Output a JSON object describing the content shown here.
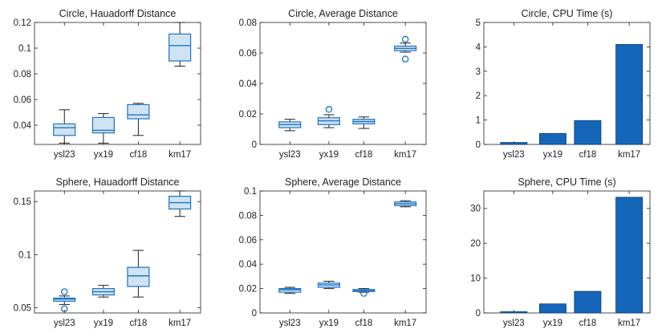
{
  "colors": {
    "box_fill": "#cfe3f3",
    "box_edge": "#1f74c2",
    "median": "#1f74c2",
    "whisker": "#222222",
    "outlier": "#1f74c2",
    "bar": "#1565b8",
    "axis": "#222222",
    "text": "#222222"
  },
  "chart_data": [
    {
      "type": "boxplot",
      "title": "Circle, Hauadorff Distance",
      "categories": [
        "ysl23",
        "yx19",
        "cf18",
        "km17"
      ],
      "ylim": [
        0.025,
        0.12
      ],
      "yticks": [
        0.04,
        0.06,
        0.08,
        0.1,
        0.12
      ],
      "ytick_labels": [
        "0.04",
        "0.06",
        "0.08",
        "0.1",
        "0.12"
      ],
      "boxes": [
        {
          "whislo": 0.026,
          "q1": 0.032,
          "med": 0.038,
          "q3": 0.041,
          "whishi": 0.052,
          "outliers": []
        },
        {
          "whislo": 0.026,
          "q1": 0.034,
          "med": 0.036,
          "q3": 0.046,
          "whishi": 0.049,
          "outliers": []
        },
        {
          "whislo": 0.032,
          "q1": 0.045,
          "med": 0.048,
          "q3": 0.056,
          "whishi": 0.057,
          "outliers": []
        },
        {
          "whislo": 0.086,
          "q1": 0.09,
          "med": 0.102,
          "q3": 0.111,
          "whishi": 0.12,
          "outliers": []
        }
      ]
    },
    {
      "type": "boxplot",
      "title": "Circle, Average Distance",
      "categories": [
        "ysl23",
        "yx19",
        "cf18",
        "km17"
      ],
      "ylim": [
        0,
        0.08
      ],
      "yticks": [
        0,
        0.02,
        0.04,
        0.06,
        0.08
      ],
      "ytick_labels": [
        "0",
        "0.02",
        "0.04",
        "0.06",
        "0.08"
      ],
      "boxes": [
        {
          "whislo": 0.009,
          "q1": 0.011,
          "med": 0.013,
          "q3": 0.0148,
          "whishi": 0.0165,
          "outliers": []
        },
        {
          "whislo": 0.011,
          "q1": 0.013,
          "med": 0.0155,
          "q3": 0.0175,
          "whishi": 0.0195,
          "outliers": [
            0.023
          ]
        },
        {
          "whislo": 0.0105,
          "q1": 0.0135,
          "med": 0.015,
          "q3": 0.0165,
          "whishi": 0.018,
          "outliers": []
        },
        {
          "whislo": 0.0605,
          "q1": 0.0615,
          "med": 0.063,
          "q3": 0.0645,
          "whishi": 0.0665,
          "outliers": [
            0.069,
            0.056
          ]
        }
      ]
    },
    {
      "type": "bar",
      "title": "Circle, CPU Time (s)",
      "categories": [
        "ysl23",
        "yx19",
        "cf18",
        "km17"
      ],
      "values": [
        0.08,
        0.45,
        0.98,
        4.1
      ],
      "ylim": [
        0,
        5
      ],
      "yticks": [
        0,
        1,
        2,
        3,
        4,
        5
      ],
      "ytick_labels": [
        "0",
        "1",
        "2",
        "3",
        "4",
        "5"
      ]
    },
    {
      "type": "boxplot",
      "title": "Sphere, Hauadorff Distance",
      "categories": [
        "ysl23",
        "yx19",
        "cf18",
        "km17"
      ],
      "ylim": [
        0.045,
        0.16
      ],
      "yticks": [
        0.05,
        0.1,
        0.15
      ],
      "ytick_labels": [
        "0.05",
        "0.1",
        "0.15"
      ],
      "boxes": [
        {
          "whislo": 0.053,
          "q1": 0.056,
          "med": 0.058,
          "q3": 0.059,
          "whishi": 0.061,
          "outliers": [
            0.065,
            0.049
          ]
        },
        {
          "whislo": 0.06,
          "q1": 0.062,
          "med": 0.065,
          "q3": 0.068,
          "whishi": 0.071,
          "outliers": []
        },
        {
          "whislo": 0.06,
          "q1": 0.07,
          "med": 0.08,
          "q3": 0.088,
          "whishi": 0.104,
          "outliers": []
        },
        {
          "whislo": 0.136,
          "q1": 0.143,
          "med": 0.149,
          "q3": 0.155,
          "whishi": 0.16,
          "outliers": []
        }
      ]
    },
    {
      "type": "boxplot",
      "title": "Sphere, Average Distance",
      "categories": [
        "ysl23",
        "yx19",
        "cf18",
        "km17"
      ],
      "ylim": [
        0,
        0.1
      ],
      "yticks": [
        0,
        0.02,
        0.04,
        0.06,
        0.08,
        0.1
      ],
      "ytick_labels": [
        "0",
        "0.02",
        "0.04",
        "0.06",
        "0.08",
        "0.1"
      ],
      "boxes": [
        {
          "whislo": 0.016,
          "q1": 0.017,
          "med": 0.019,
          "q3": 0.02,
          "whishi": 0.021,
          "outliers": []
        },
        {
          "whislo": 0.02,
          "q1": 0.021,
          "med": 0.023,
          "q3": 0.0245,
          "whishi": 0.026,
          "outliers": []
        },
        {
          "whislo": 0.017,
          "q1": 0.0175,
          "med": 0.0185,
          "q3": 0.0192,
          "whishi": 0.02,
          "outliers": [
            0.016
          ]
        },
        {
          "whislo": 0.087,
          "q1": 0.088,
          "med": 0.0895,
          "q3": 0.091,
          "whishi": 0.092,
          "outliers": []
        }
      ]
    },
    {
      "type": "bar",
      "title": "Sphere, CPU Time (s)",
      "categories": [
        "ysl23",
        "yx19",
        "cf18",
        "km17"
      ],
      "values": [
        0.35,
        2.6,
        6.2,
        33.2
      ],
      "ylim": [
        0,
        35
      ],
      "yticks": [
        0,
        10,
        20,
        30
      ],
      "ytick_labels": [
        "0",
        "10",
        "20",
        "30"
      ]
    }
  ]
}
